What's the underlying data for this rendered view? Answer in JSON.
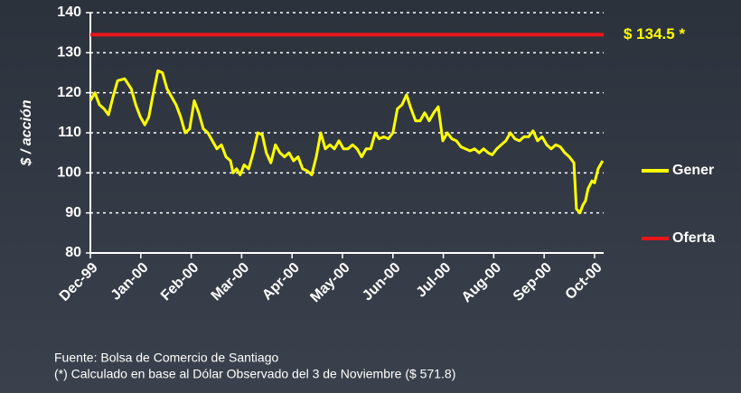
{
  "chart_data": {
    "type": "line",
    "ylabel": "$ / acción",
    "ylim": [
      80,
      140
    ],
    "yticks": [
      80,
      90,
      100,
      110,
      120,
      130,
      140
    ],
    "xlim": [
      0,
      10.18
    ],
    "xticks": [
      {
        "value": 0,
        "label": "Dec-99"
      },
      {
        "value": 1,
        "label": "Jan-00"
      },
      {
        "value": 2,
        "label": "Feb-00"
      },
      {
        "value": 3,
        "label": "Mar-00"
      },
      {
        "value": 4,
        "label": "Apr-00"
      },
      {
        "value": 5,
        "label": "May-00"
      },
      {
        "value": 6,
        "label": "Jun-00"
      },
      {
        "value": 7,
        "label": "Jul-00"
      },
      {
        "value": 8,
        "label": "Aug-00"
      },
      {
        "value": 9,
        "label": "Sep-00"
      },
      {
        "value": 10,
        "label": "Oct-00"
      }
    ],
    "grid": true,
    "legend": "right",
    "series": [
      {
        "name": "Gener",
        "color": "#ffff00",
        "x": [
          0,
          0.09,
          0.18,
          0.27,
          0.36,
          0.45,
          0.54,
          0.68,
          0.81,
          0.9,
          0.99,
          1.08,
          1.16,
          1.25,
          1.34,
          1.43,
          1.52,
          1.61,
          1.7,
          1.79,
          1.88,
          1.97,
          2.06,
          2.15,
          2.24,
          2.33,
          2.42,
          2.51,
          2.6,
          2.69,
          2.78,
          2.83,
          2.9,
          2.97,
          3.05,
          3.14,
          3.23,
          3.32,
          3.41,
          3.49,
          3.58,
          3.67,
          3.76,
          3.85,
          3.94,
          4.03,
          4.12,
          4.21,
          4.3,
          4.39,
          4.48,
          4.57,
          4.66,
          4.75,
          4.84,
          4.93,
          5.02,
          5.11,
          5.2,
          5.29,
          5.38,
          5.47,
          5.56,
          5.65,
          5.73,
          5.82,
          5.91,
          6.0,
          6.09,
          6.18,
          6.27,
          6.36,
          6.45,
          6.54,
          6.63,
          6.72,
          6.81,
          6.9,
          6.99,
          7.08,
          7.17,
          7.26,
          7.35,
          7.44,
          7.53,
          7.62,
          7.71,
          7.8,
          7.89,
          7.97,
          8.06,
          8.15,
          8.24,
          8.33,
          8.42,
          8.51,
          8.6,
          8.69,
          8.78,
          8.87,
          8.96,
          9.05,
          9.14,
          9.23,
          9.32,
          9.41,
          9.5,
          9.59,
          9.64,
          9.71,
          9.77,
          9.82,
          9.87,
          9.95,
          10.0,
          10.07,
          10.16
        ],
        "values": [
          118,
          120,
          117,
          116,
          114.5,
          119,
          123,
          123.5,
          121,
          117,
          114,
          112,
          114,
          120,
          125.5,
          125,
          121,
          119,
          117,
          114,
          110,
          111,
          118,
          115,
          111,
          110,
          108,
          106,
          107,
          104,
          103,
          100,
          101,
          99.5,
          102,
          101,
          105,
          110,
          109.5,
          105,
          102.5,
          107,
          105,
          104,
          105,
          103,
          104,
          101,
          100.5,
          99.5,
          104,
          110,
          106,
          107,
          106,
          108,
          106,
          106,
          107,
          106,
          104,
          106,
          106,
          110,
          108.5,
          109,
          108.5,
          110,
          116,
          117,
          119.5,
          116,
          113,
          113,
          115,
          113,
          115,
          116.5,
          108,
          110,
          108.5,
          108,
          106.5,
          106,
          105.5,
          106,
          105,
          106,
          105,
          104.5,
          106,
          107,
          108,
          110,
          108.5,
          108,
          109,
          109,
          110.5,
          108,
          109,
          107,
          106,
          107,
          106.5,
          105,
          104,
          102.5,
          91,
          90,
          92,
          93,
          96,
          98,
          97.5,
          101,
          103
        ]
      },
      {
        "name": "Oferta",
        "color": "#e8161b",
        "x": [
          0,
          10.18
        ],
        "values": [
          134.5,
          134.5
        ],
        "value_labels": [
          "$ 134.5 *",
          null
        ]
      }
    ],
    "notes": [
      "Fuente: Bolsa de Comercio de Santiago",
      "(*) Calculado en base al Dólar Observado del 3 de Noviembre ($ 571.8)"
    ]
  }
}
